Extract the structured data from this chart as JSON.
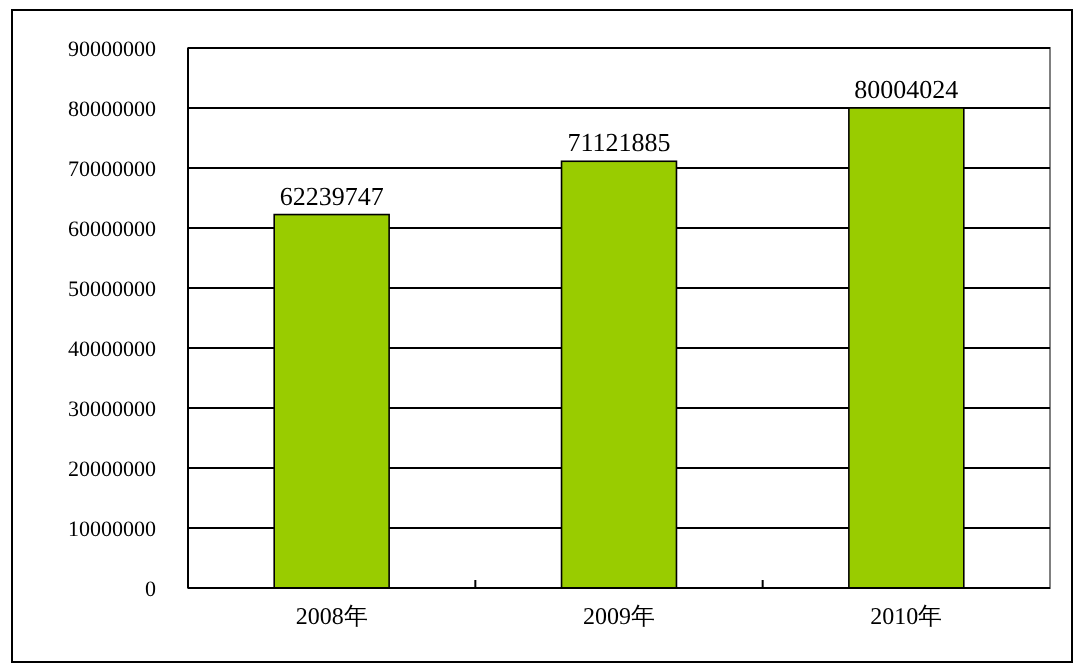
{
  "chart_data": {
    "type": "bar",
    "categories": [
      "2008年",
      "2009年",
      "2010年"
    ],
    "values": [
      62239747,
      71121885,
      80004024
    ],
    "color": "#99cc00",
    "ylim": [
      0,
      90000000
    ],
    "yticks": [
      0,
      10000000,
      20000000,
      30000000,
      40000000,
      50000000,
      60000000,
      70000000,
      80000000,
      90000000
    ],
    "grid": "y",
    "data_labels": true
  }
}
